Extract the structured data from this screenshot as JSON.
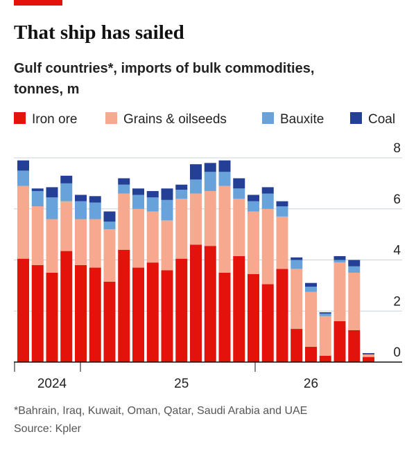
{
  "chart_data": {
    "type": "stacked_bar",
    "title": "That ship has sailed",
    "subtitle": [
      "Gulf countries*, imports of bulk commodities,",
      "tonnes, m"
    ],
    "footnote": "*Bahrain, Iraq, Kuwait, Oman, Qatar, Saudi Arabia and UAE",
    "source": "Source: Kpler",
    "categories": [
      null,
      null,
      "2024",
      null,
      null,
      null,
      null,
      null,
      null,
      null,
      null,
      "25",
      null,
      null,
      null,
      null,
      null,
      null,
      null,
      null,
      "26",
      null,
      null,
      null,
      null
    ],
    "series": [
      {
        "name": "Iron ore",
        "color": "#e3120b",
        "values": [
          4.05,
          3.8,
          3.5,
          4.35,
          3.8,
          3.7,
          3.15,
          4.4,
          3.7,
          3.9,
          3.6,
          4.05,
          4.6,
          4.55,
          3.5,
          4.15,
          3.45,
          3.05,
          3.65,
          1.3,
          0.6,
          0.25,
          1.6,
          1.25,
          0.2
        ]
      },
      {
        "name": "Grains & oilseeds",
        "color": "#f6a98e",
        "values": [
          2.85,
          2.3,
          2.1,
          1.95,
          1.8,
          1.9,
          2.05,
          2.2,
          2.3,
          2.0,
          1.95,
          2.35,
          2.0,
          2.15,
          3.4,
          2.25,
          2.45,
          2.95,
          2.05,
          2.35,
          2.15,
          1.55,
          2.3,
          2.25,
          0.1
        ]
      },
      {
        "name": "Bauxite",
        "color": "#67a3da",
        "values": [
          0.6,
          0.6,
          0.85,
          0.7,
          0.7,
          0.65,
          0.3,
          0.35,
          0.55,
          0.55,
          0.8,
          0.35,
          0.55,
          0.75,
          0.55,
          0.4,
          0.4,
          0.6,
          0.4,
          0.35,
          0.2,
          0.1,
          0.1,
          0.25,
          0
        ]
      },
      {
        "name": "Coal",
        "color": "#233f96",
        "values": [
          0.4,
          0.1,
          0.4,
          0.3,
          0.25,
          0.25,
          0.4,
          0.25,
          0.25,
          0.25,
          0.45,
          0.2,
          0.6,
          0.35,
          0.45,
          0.4,
          0.25,
          0.25,
          0.2,
          0.1,
          0.15,
          0.05,
          0.15,
          0.25,
          0.05
        ]
      }
    ],
    "ylim": [
      0,
      8
    ],
    "yticks": [
      0,
      2,
      4,
      6,
      8
    ],
    "grid": true,
    "legend": "top"
  }
}
